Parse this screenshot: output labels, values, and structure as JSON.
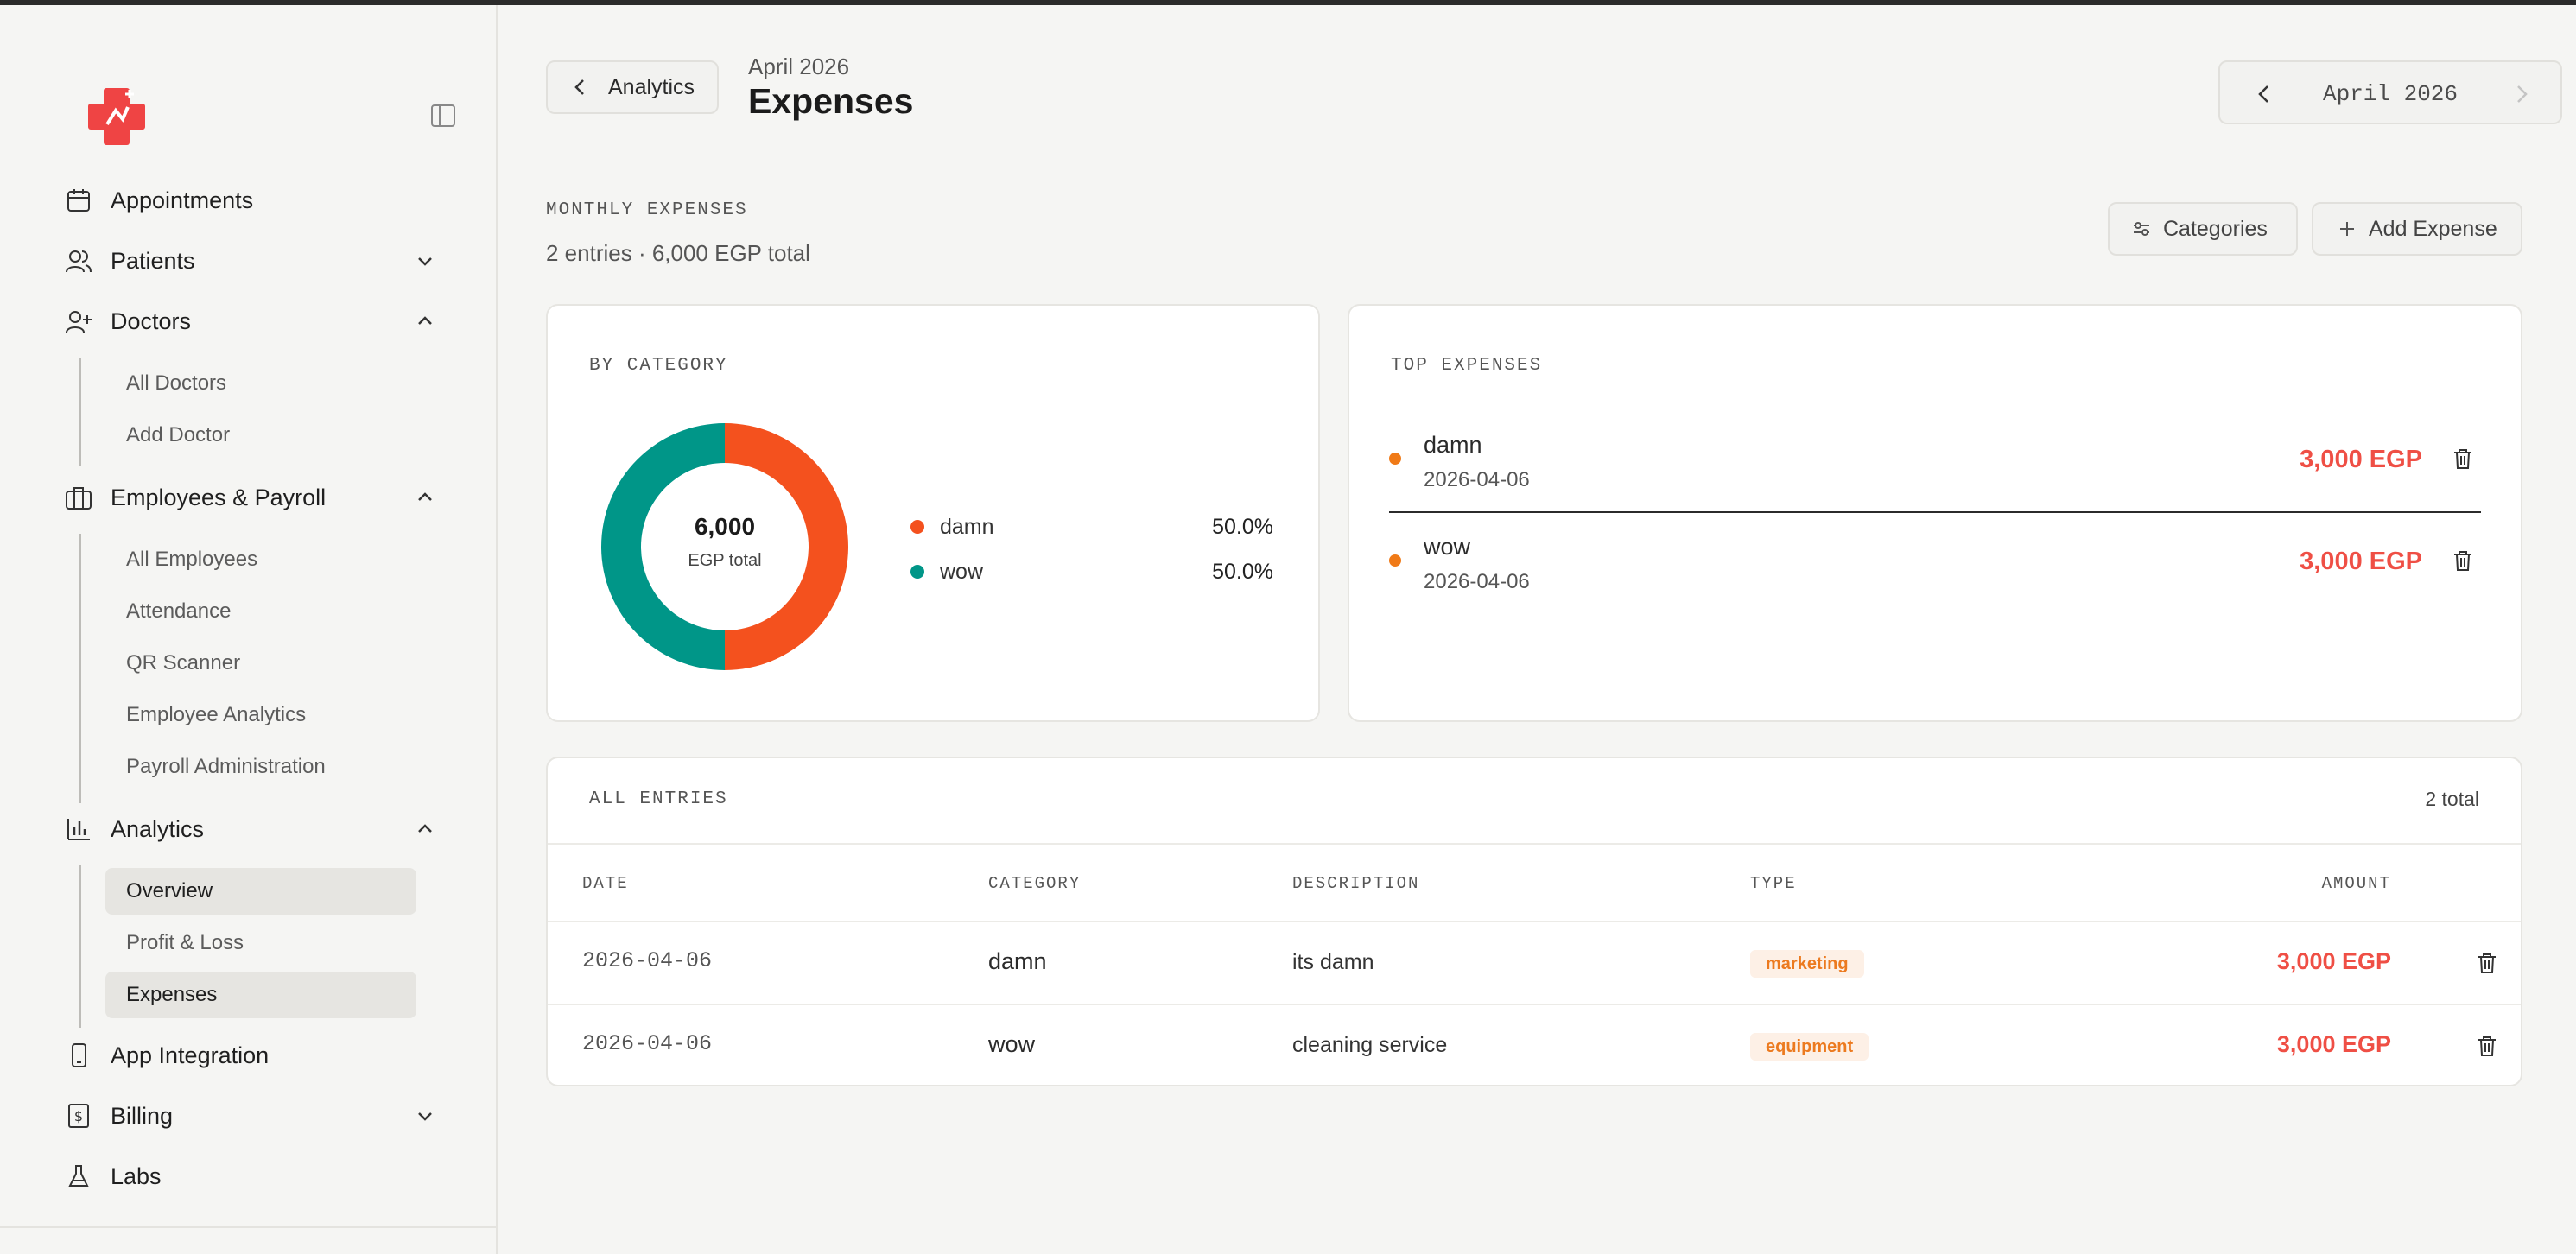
{
  "sidebar": {
    "nav": {
      "appointments": "Appointments",
      "patients": "Patients",
      "doctors": "Doctors",
      "employees": "Employees & Payroll",
      "analytics": "Analytics",
      "app_integration": "App Integration",
      "billing": "Billing",
      "labs": "Labs"
    },
    "doctors_sub": [
      "All Doctors",
      "Add Doctor"
    ],
    "employees_sub": [
      "All Employees",
      "Attendance",
      "QR Scanner",
      "Employee Analytics",
      "Payroll Administration"
    ],
    "analytics_sub": [
      "Overview",
      "Profit & Loss",
      "Expenses"
    ],
    "brand_color": "#ef4444"
  },
  "header": {
    "back_label": "Analytics",
    "subtitle": "April 2026",
    "title": "Expenses",
    "month_label": "April 2026"
  },
  "summary": {
    "caption": "MONTHLY EXPENSES",
    "text": "2 entries · 6,000 EGP total",
    "categories_label": "Categories",
    "add_label": "Add Expense"
  },
  "by_category": {
    "caption": "BY CATEGORY",
    "center_value": "6,000",
    "center_label": "EGP total",
    "legend": [
      {
        "name": "damn",
        "pct": "50.0%",
        "color": "#f4511e"
      },
      {
        "name": "wow",
        "pct": "50.0%",
        "color": "#009688"
      }
    ]
  },
  "chart_data": {
    "type": "pie",
    "categories": [
      "damn",
      "wow"
    ],
    "values": [
      3000,
      3000
    ],
    "colors": [
      "#f4511e",
      "#009688"
    ]
  },
  "top_expenses": {
    "caption": "TOP EXPENSES",
    "items": [
      {
        "name": "damn",
        "date": "2026-04-06",
        "amount": "3,000 EGP"
      },
      {
        "name": "wow",
        "date": "2026-04-06",
        "amount": "3,000 EGP"
      }
    ]
  },
  "entries": {
    "caption": "ALL ENTRIES",
    "total": "2 total",
    "headers": {
      "date": "DATE",
      "category": "CATEGORY",
      "description": "DESCRIPTION",
      "type": "TYPE",
      "amount": "AMOUNT"
    },
    "rows": [
      {
        "date": "2026-04-06",
        "category": "damn",
        "description": "its damn",
        "type": "marketing",
        "amount": "3,000 EGP"
      },
      {
        "date": "2026-04-06",
        "category": "wow",
        "description": "cleaning service",
        "type": "equipment",
        "amount": "3,000 EGP"
      }
    ]
  },
  "accent": {
    "negative": "#ef4f45",
    "badge_text": "#ec7a1f",
    "dot": "#f07a17"
  }
}
